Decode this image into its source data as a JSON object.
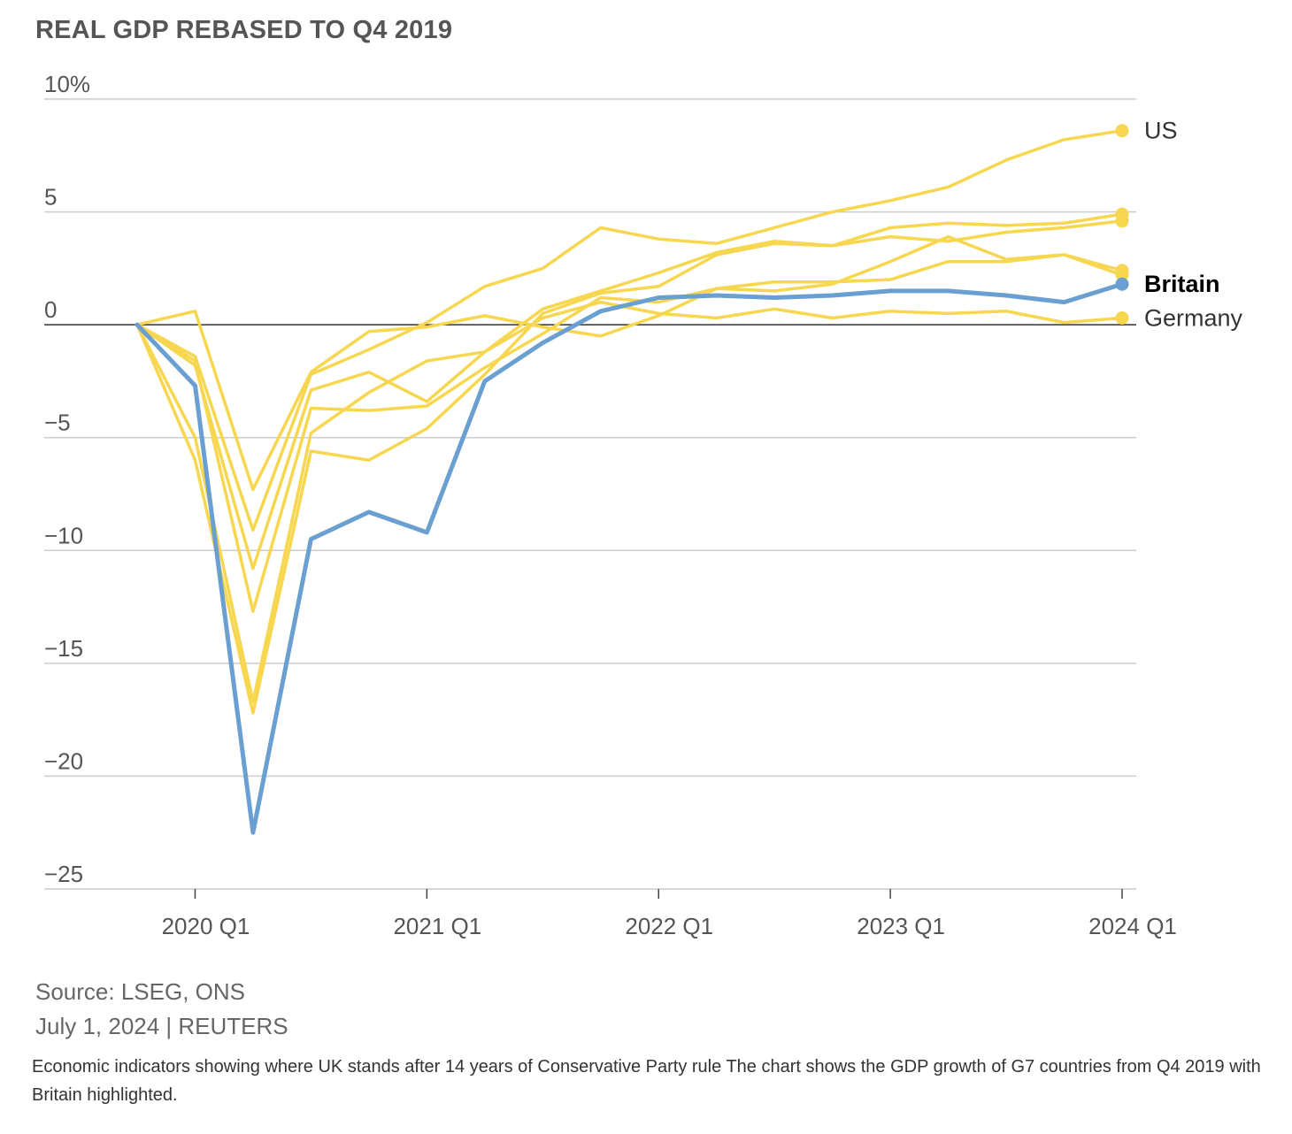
{
  "chart_data": {
    "type": "line",
    "title": "REAL GDP REBASED TO Q4 2019",
    "xlabel": "",
    "ylabel": "",
    "ylim": [
      -25,
      10
    ],
    "y_ticks": [
      10,
      5,
      0,
      -5,
      -10,
      -15,
      -20,
      -25
    ],
    "y_tick_labels": [
      "10%",
      "5",
      "0",
      "−5",
      "−10",
      "−15",
      "−20",
      "−25"
    ],
    "x": [
      "2019 Q4",
      "2020 Q1",
      "2020 Q2",
      "2020 Q3",
      "2020 Q4",
      "2021 Q1",
      "2021 Q2",
      "2021 Q3",
      "2021 Q4",
      "2022 Q1",
      "2022 Q2",
      "2022 Q3",
      "2022 Q4",
      "2023 Q1",
      "2023 Q2",
      "2023 Q3",
      "2023 Q4",
      "2024 Q1"
    ],
    "x_tick_labels": [
      "2020 Q1",
      "2021 Q1",
      "2022 Q1",
      "2023 Q1",
      "2024 Q1"
    ],
    "grid": true,
    "colors": {
      "highlight": "#6a9fd1",
      "other": "#f7d650",
      "zero_line": "#333333",
      "grid": "#cccccc"
    },
    "series": [
      {
        "values": [
          0,
          0.6,
          -7.3,
          -2.1,
          -0.3,
          -0.1,
          0.4,
          -0.1,
          -0.5,
          0.4,
          1.6,
          1.5,
          1.8,
          2.8,
          3.9,
          2.9,
          3.1,
          2.4
        ],
        "highlight": false
      },
      {
        "values": [
          0,
          -1.6,
          -12.7,
          -3.7,
          -3.8,
          -3.6,
          -1.9,
          -0.4,
          1.2,
          1.0,
          1.6,
          1.9,
          1.9,
          2.0,
          2.8,
          2.8,
          3.1,
          2.2
        ],
        "highlight": false
      },
      {
        "values": [
          0,
          -5.0,
          -16.7,
          -4.8,
          -3.0,
          -1.6,
          -1.2,
          0.7,
          1.5,
          2.3,
          3.2,
          3.7,
          3.5,
          4.3,
          4.5,
          4.4,
          4.5,
          4.9
        ],
        "highlight": false
      },
      {
        "values": [
          0,
          -6.0,
          -17.2,
          -5.6,
          -6.0,
          -4.6,
          -2.2,
          0.5,
          1.4,
          1.7,
          3.1,
          3.6,
          3.5,
          3.9,
          3.7,
          4.1,
          4.3,
          4.6
        ],
        "highlight": false
      },
      {
        "name": "Germany",
        "values": [
          0,
          -1.8,
          -10.8,
          -2.9,
          -2.1,
          -3.4,
          -1.2,
          0.3,
          1.0,
          0.5,
          0.3,
          0.7,
          0.3,
          0.6,
          0.5,
          0.6,
          0.1,
          0.3
        ],
        "highlight": false
      },
      {
        "name": "US",
        "values": [
          0,
          -1.4,
          -9.1,
          -2.2,
          -1.1,
          0.1,
          1.7,
          2.5,
          4.3,
          3.8,
          3.6,
          4.3,
          5.0,
          5.5,
          6.1,
          7.3,
          8.2,
          8.6
        ],
        "highlight": false
      },
      {
        "name": "Britain",
        "values": [
          0,
          -2.7,
          -22.5,
          -9.5,
          -8.3,
          -9.2,
          -2.5,
          -0.8,
          0.6,
          1.2,
          1.3,
          1.2,
          1.3,
          1.5,
          1.5,
          1.3,
          1.0,
          1.8
        ],
        "highlight": true
      }
    ]
  },
  "footer": {
    "source": "Source: LSEG, ONS",
    "date_credit": "July 1, 2024 | REUTERS",
    "caption": "Economic indicators showing where UK stands after 14 years of Conservative Party rule The chart shows the GDP growth of G7 countries from Q4 2019 with Britain highlighted."
  }
}
